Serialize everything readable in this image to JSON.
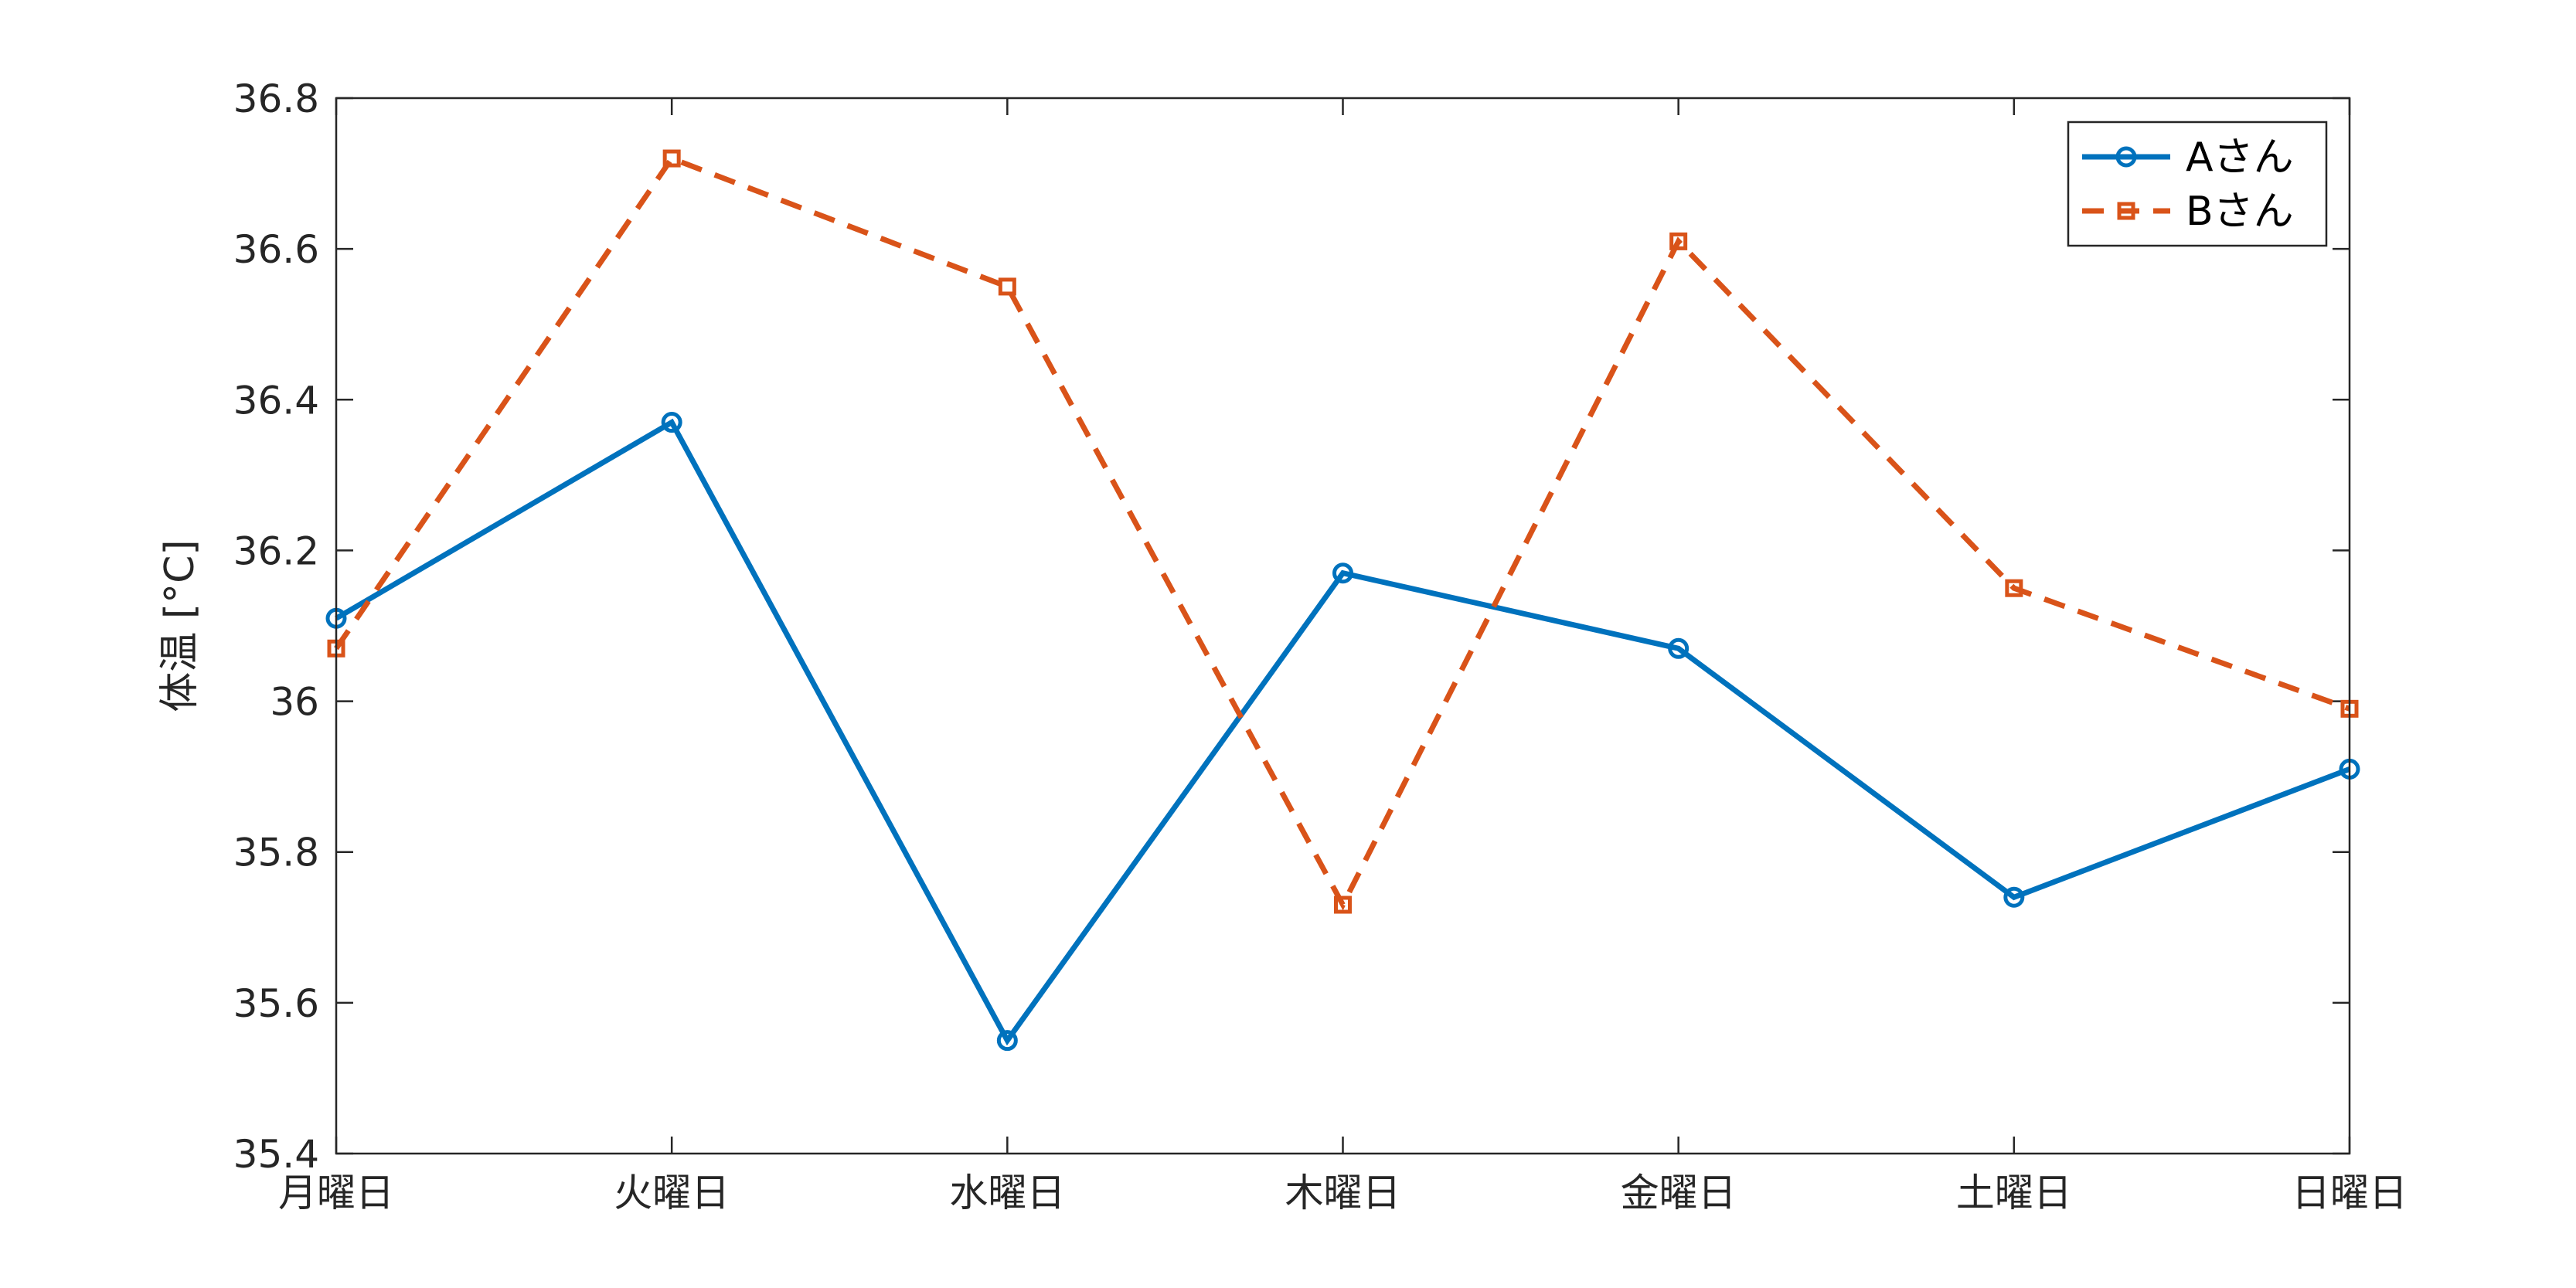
{
  "chart_data": {
    "type": "line",
    "categories": [
      "月曜日",
      "火曜日",
      "水曜日",
      "木曜日",
      "金曜日",
      "土曜日",
      "日曜日"
    ],
    "series": [
      {
        "name": "Aさん",
        "values": [
          36.11,
          36.37,
          35.55,
          36.17,
          36.07,
          35.74,
          35.91
        ],
        "color": "#0072BD",
        "line_style": "solid",
        "marker": "circle"
      },
      {
        "name": "Bさん",
        "values": [
          36.07,
          36.72,
          36.55,
          35.73,
          36.61,
          36.15,
          35.99
        ],
        "color": "#D95319",
        "line_style": "dashed",
        "marker": "square"
      }
    ],
    "xlabel": "",
    "ylabel": "体温 [°C]",
    "ylim": [
      35.4,
      36.8
    ],
    "yticks": [
      35.4,
      35.6,
      35.8,
      36,
      36.2,
      36.4,
      36.6,
      36.8
    ],
    "ytick_labels": [
      "35.4",
      "35.6",
      "35.8",
      "36",
      "36.2",
      "36.4",
      "36.6",
      "36.8"
    ],
    "grid": false,
    "legend_position": "top-right"
  }
}
